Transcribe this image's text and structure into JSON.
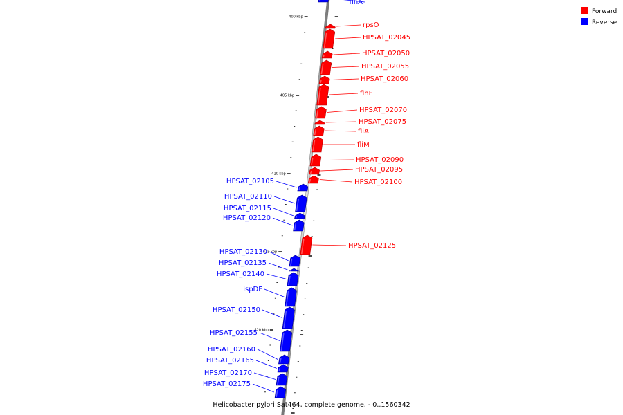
{
  "caption": "Helicobacter pylori Sat464, complete genome. - 0..1560342",
  "colors": {
    "forward": "#ff0000",
    "reverse": "#0000ff",
    "backbone": "#9a9a9a"
  },
  "legend": [
    {
      "label": "Forward",
      "color": "#ff0000"
    },
    {
      "label": "Reverse",
      "color": "#0000ff"
    }
  ],
  "scale": {
    "unit": "kbp",
    "labels": [
      "400 kbp",
      "405 kbp",
      "410 kbp",
      "415 kbp",
      "420 kbp"
    ]
  },
  "genes": [
    {
      "name": "flhA",
      "strand": "reverse"
    },
    {
      "name": "rpsO",
      "strand": "forward"
    },
    {
      "name": "HPSAT_02045",
      "strand": "forward"
    },
    {
      "name": "HPSAT_02050",
      "strand": "forward"
    },
    {
      "name": "HPSAT_02055",
      "strand": "forward"
    },
    {
      "name": "HPSAT_02060",
      "strand": "forward"
    },
    {
      "name": "flhF",
      "strand": "forward"
    },
    {
      "name": "HPSAT_02070",
      "strand": "forward"
    },
    {
      "name": "HPSAT_02075",
      "strand": "forward"
    },
    {
      "name": "fliA",
      "strand": "forward"
    },
    {
      "name": "fliM",
      "strand": "forward"
    },
    {
      "name": "HPSAT_02090",
      "strand": "forward"
    },
    {
      "name": "HPSAT_02095",
      "strand": "forward"
    },
    {
      "name": "HPSAT_02100",
      "strand": "forward"
    },
    {
      "name": "HPSAT_02105",
      "strand": "reverse"
    },
    {
      "name": "HPSAT_02110",
      "strand": "reverse"
    },
    {
      "name": "HPSAT_02115",
      "strand": "reverse"
    },
    {
      "name": "HPSAT_02120",
      "strand": "reverse"
    },
    {
      "name": "HPSAT_02125",
      "strand": "forward"
    },
    {
      "name": "HPSAT_02130",
      "strand": "reverse"
    },
    {
      "name": "HPSAT_02135",
      "strand": "reverse"
    },
    {
      "name": "HPSAT_02140",
      "strand": "reverse"
    },
    {
      "name": "ispDF",
      "strand": "reverse"
    },
    {
      "name": "HPSAT_02150",
      "strand": "reverse"
    },
    {
      "name": "HPSAT_02155",
      "strand": "reverse"
    },
    {
      "name": "HPSAT_02160",
      "strand": "reverse"
    },
    {
      "name": "HPSAT_02165",
      "strand": "reverse"
    },
    {
      "name": "HPSAT_02170",
      "strand": "reverse"
    },
    {
      "name": "HPSAT_02175",
      "strand": "reverse"
    }
  ]
}
